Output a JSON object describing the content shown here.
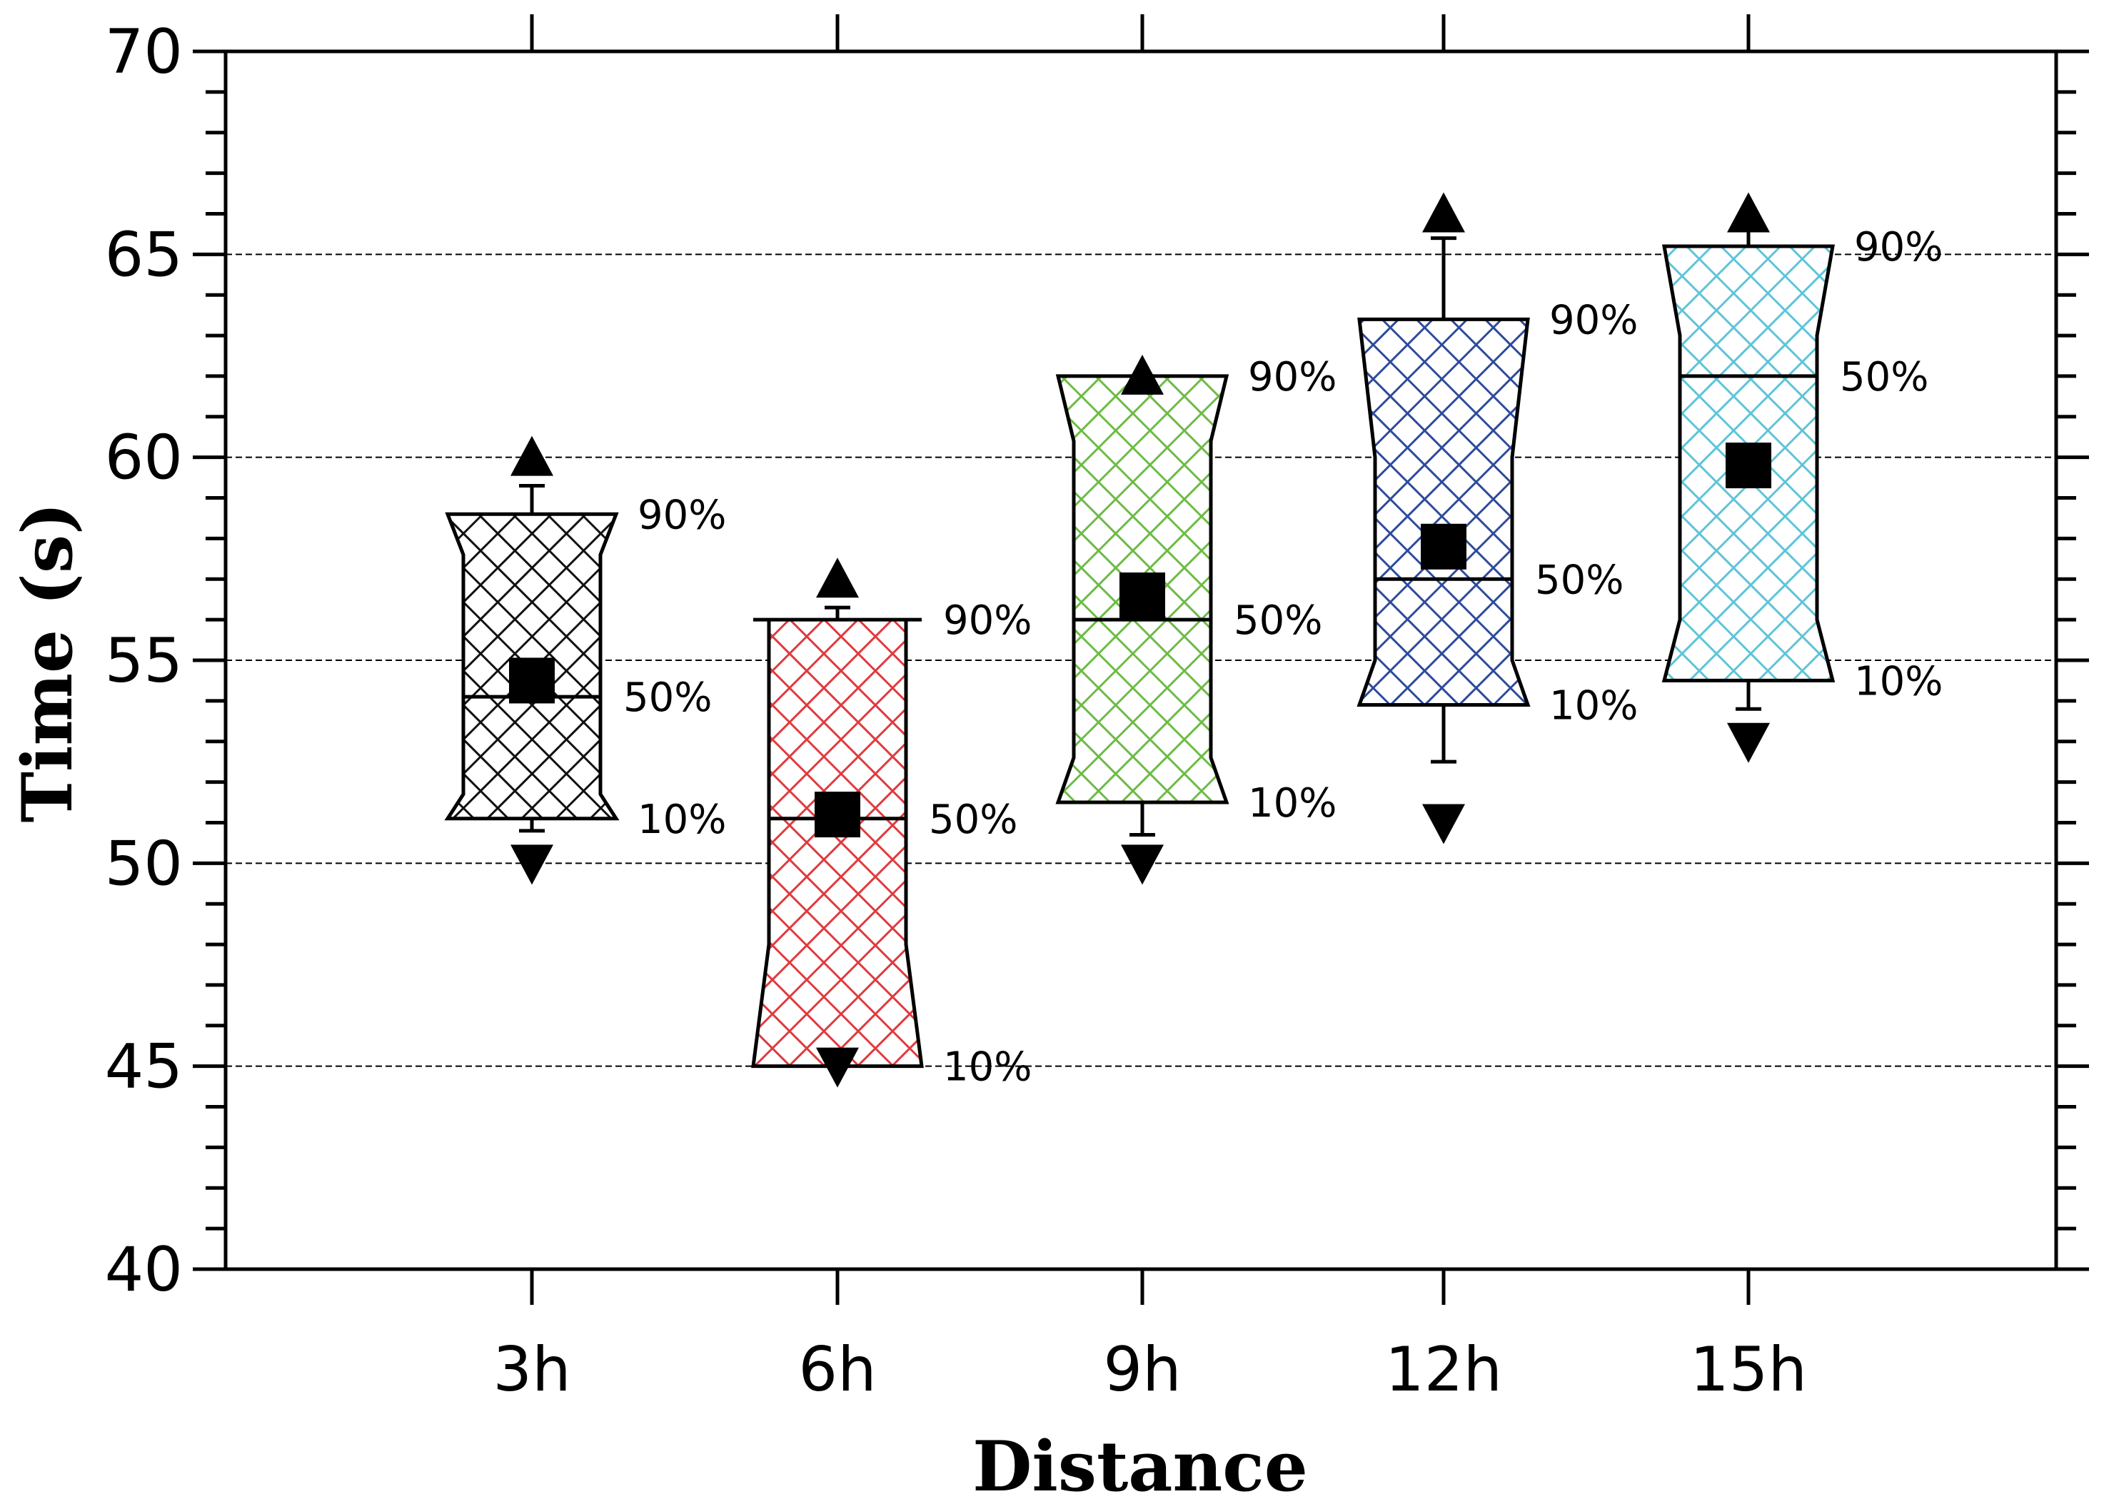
{
  "chart_data": {
    "type": "box",
    "title": "",
    "xlabel": "Distance",
    "ylabel": "Time (s)",
    "ylim": [
      40,
      70
    ],
    "yticks": [
      "40",
      "45",
      "50",
      "55",
      "60",
      "65",
      "70"
    ],
    "categories": [
      "3h",
      "6h",
      "9h",
      "12h",
      "15h"
    ],
    "gridlines_y": [
      45,
      50,
      55,
      60,
      65
    ],
    "legend": "none",
    "percentile_labels": {
      "p90": "90%",
      "p50": "50%",
      "p10": "10%"
    },
    "series": [
      {
        "name": "3h",
        "color": "#111111",
        "p10": 51.1,
        "p50": 54.1,
        "p90": 58.6,
        "notch_low": 51.7,
        "notch_high": 57.6,
        "mean": 54.5,
        "whisker_low": 50.8,
        "whisker_high": 59.3,
        "max": 60.0,
        "min": 50.0
      },
      {
        "name": "6h",
        "color": "#e03a3e",
        "p10": 45.0,
        "p50": 51.1,
        "p90": 56.0,
        "notch_low": 48.0,
        "notch_high": 56.0,
        "mean": 51.2,
        "whisker_low": 45.0,
        "whisker_high": 56.3,
        "max": 57.0,
        "min": 45.0
      },
      {
        "name": "9h",
        "color": "#6dbb45",
        "p10": 51.5,
        "p50": 56.0,
        "p90": 62.0,
        "notch_low": 52.6,
        "notch_high": 60.4,
        "mean": 56.6,
        "whisker_low": 50.7,
        "whisker_high": 62.0,
        "max": 62.0,
        "min": 50.0
      },
      {
        "name": "12h",
        "color": "#2e4b9b",
        "p10": 53.9,
        "p50": 57.0,
        "p90": 63.4,
        "notch_low": 55.0,
        "notch_high": 60.0,
        "mean": 57.8,
        "whisker_low": 52.5,
        "whisker_high": 65.4,
        "max": 66.0,
        "min": 51.0
      },
      {
        "name": "15h",
        "color": "#5ec4d8",
        "p10": 54.5,
        "p50": 62.0,
        "p90": 65.2,
        "notch_low": 56.0,
        "notch_high": 63.0,
        "mean": 59.8,
        "whisker_low": 53.8,
        "whisker_high": 65.6,
        "max": 66.0,
        "min": 53.0
      }
    ]
  }
}
